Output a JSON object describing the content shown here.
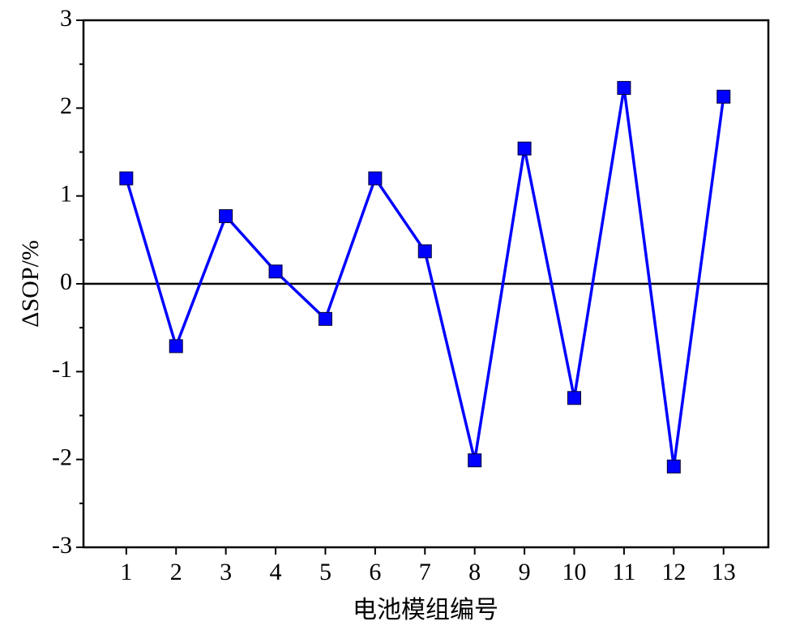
{
  "chart_data": {
    "type": "line",
    "x_label": "电池模组编号",
    "y_label": "ΔSOP/%",
    "x": [
      1,
      2,
      3,
      4,
      5,
      6,
      7,
      8,
      9,
      10,
      11,
      12,
      13
    ],
    "series": [
      {
        "color": "#0000ff",
        "values": [
          1.2,
          -0.71,
          0.77,
          0.14,
          -0.4,
          1.2,
          0.37,
          -2.01,
          1.54,
          -1.3,
          2.23,
          -2.08,
          2.13
        ]
      }
    ],
    "xlim": [
      0.14,
      13.9
    ],
    "xticks": [
      1,
      2,
      3,
      4,
      5,
      6,
      7,
      8,
      9,
      10,
      11,
      12,
      13
    ],
    "ylim": [
      -3,
      3
    ],
    "yticks": [
      -3,
      -2,
      -1,
      0,
      1,
      2,
      3
    ],
    "zero_line": true
  }
}
